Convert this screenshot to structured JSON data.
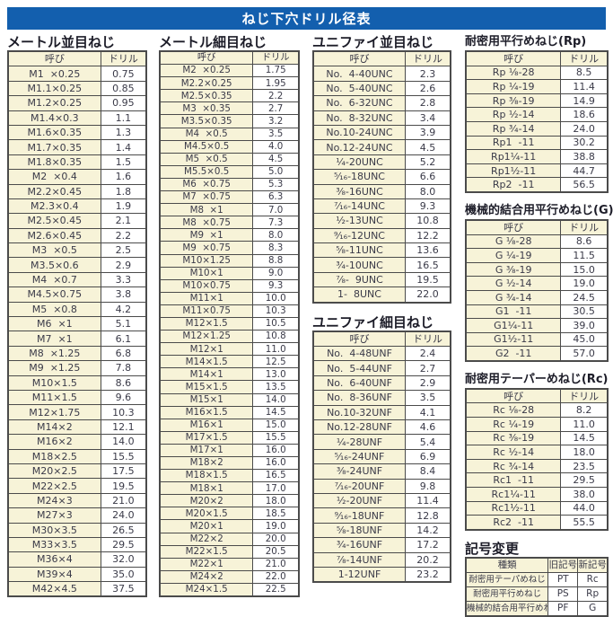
{
  "page_title": "ねじ下穴ドリル径表",
  "colors": {
    "header_blue": "#135fae",
    "cell_cream": "#f7f3d8",
    "border": "#4b4b4b",
    "text": "#3a3a48"
  },
  "col_headers": {
    "name": "呼び",
    "drill": "ドリル"
  },
  "tables": {
    "metric_coarse": {
      "title": "メートル並目ねじ",
      "rows": [
        [
          "M1  ×0.25",
          "0.75"
        ],
        [
          "M1.1×0.25",
          "0.85"
        ],
        [
          "M1.2×0.25",
          "0.95"
        ],
        [
          "M1.4×0.3",
          "1.1"
        ],
        [
          "M1.6×0.35",
          "1.3"
        ],
        [
          "M1.7×0.35",
          "1.4"
        ],
        [
          "M1.8×0.35",
          "1.5"
        ],
        [
          "M2  ×0.4",
          "1.6"
        ],
        [
          "M2.2×0.45",
          "1.8"
        ],
        [
          "M2.3×0.4",
          "1.9"
        ],
        [
          "M2.5×0.45",
          "2.1"
        ],
        [
          "M2.6×0.45",
          "2.2"
        ],
        [
          "M3  ×0.5",
          "2.5"
        ],
        [
          "M3.5×0.6",
          "2.9"
        ],
        [
          "M4  ×0.7",
          "3.3"
        ],
        [
          "M4.5×0.75",
          "3.8"
        ],
        [
          "M5  ×0.8",
          "4.2"
        ],
        [
          "M6  ×1",
          "5.1"
        ],
        [
          "M7  ×1",
          "6.1"
        ],
        [
          "M8  ×1.25",
          "6.8"
        ],
        [
          "M9  ×1.25",
          "7.8"
        ],
        [
          "M10×1.5",
          "8.6"
        ],
        [
          "M11×1.5",
          "9.6"
        ],
        [
          "M12×1.75",
          "10.3"
        ],
        [
          "M14×2",
          "12.1"
        ],
        [
          "M16×2",
          "14.0"
        ],
        [
          "M18×2.5",
          "15.5"
        ],
        [
          "M20×2.5",
          "17.5"
        ],
        [
          "M22×2.5",
          "19.5"
        ],
        [
          "M24×3",
          "21.0"
        ],
        [
          "M27×3",
          "24.0"
        ],
        [
          "M30×3.5",
          "26.5"
        ],
        [
          "M33×3.5",
          "29.5"
        ],
        [
          "M36×4",
          "32.0"
        ],
        [
          "M39×4",
          "35.0"
        ],
        [
          "M42×4.5",
          "37.5"
        ]
      ]
    },
    "metric_fine": {
      "title": "メートル細目ねじ",
      "rows": [
        [
          "M2  ×0.25",
          "1.75"
        ],
        [
          "M2.2×0.25",
          "1.95"
        ],
        [
          "M2.5×0.35",
          "2.2"
        ],
        [
          "M3  ×0.35",
          "2.7"
        ],
        [
          "M3.5×0.35",
          "3.2"
        ],
        [
          "M4  ×0.5",
          "3.5"
        ],
        [
          "M4.5×0.5",
          "4.0"
        ],
        [
          "M5  ×0.5",
          "4.5"
        ],
        [
          "M5.5×0.5",
          "5.0"
        ],
        [
          "M6  ×0.75",
          "5.3"
        ],
        [
          "M7  ×0.75",
          "6.3"
        ],
        [
          "M8  ×1",
          "7.0"
        ],
        [
          "M8  ×0.75",
          "7.3"
        ],
        [
          "M9  ×1",
          "8.0"
        ],
        [
          "M9  ×0.75",
          "8.3"
        ],
        [
          "M10×1.25",
          "8.8"
        ],
        [
          "M10×1",
          "9.0"
        ],
        [
          "M10×0.75",
          "9.3"
        ],
        [
          "M11×1",
          "10.0"
        ],
        [
          "M11×0.75",
          "10.3"
        ],
        [
          "M12×1.5",
          "10.5"
        ],
        [
          "M12×1.25",
          "10.8"
        ],
        [
          "M12×1",
          "11.0"
        ],
        [
          "M14×1.5",
          "12.5"
        ],
        [
          "M14×1",
          "13.0"
        ],
        [
          "M15×1.5",
          "13.5"
        ],
        [
          "M15×1",
          "14.0"
        ],
        [
          "M16×1.5",
          "14.5"
        ],
        [
          "M16×1",
          "15.0"
        ],
        [
          "M17×1.5",
          "15.5"
        ],
        [
          "M17×1",
          "16.0"
        ],
        [
          "M18×2",
          "16.0"
        ],
        [
          "M18×1.5",
          "16.5"
        ],
        [
          "M18×1",
          "17.0"
        ],
        [
          "M20×2",
          "18.0"
        ],
        [
          "M20×1.5",
          "18.5"
        ],
        [
          "M20×1",
          "19.0"
        ],
        [
          "M22×2",
          "20.0"
        ],
        [
          "M22×1.5",
          "20.5"
        ],
        [
          "M22×1",
          "21.0"
        ],
        [
          "M24×2",
          "22.0"
        ],
        [
          "M24×1.5",
          "22.5"
        ]
      ]
    },
    "unified_coarse": {
      "title": "ユニファイ並目ねじ",
      "rows": [
        [
          "No.  4-40UNC",
          "2.3"
        ],
        [
          "No.  5-40UNC",
          "2.6"
        ],
        [
          "No.  6-32UNC",
          "2.8"
        ],
        [
          "No.  8-32UNC",
          "3.4"
        ],
        [
          "No.10-24UNC",
          "3.9"
        ],
        [
          "No.12-24UNC",
          "4.5"
        ],
        [
          "¹⁄₄-20UNC",
          "5.2"
        ],
        [
          "⁵⁄₁₆-18UNC",
          "6.6"
        ],
        [
          "³⁄₈-16UNC",
          "8.0"
        ],
        [
          "⁷⁄₁₆-14UNC",
          "9.3"
        ],
        [
          "¹⁄₂-13UNC",
          "10.8"
        ],
        [
          "⁹⁄₁₆-12UNC",
          "12.2"
        ],
        [
          "⁵⁄₈-11UNC",
          "13.6"
        ],
        [
          "³⁄₄-10UNC",
          "16.5"
        ],
        [
          "⁷⁄₈-  9UNC",
          "19.5"
        ],
        [
          "1-  8UNC",
          "22.0"
        ]
      ]
    },
    "unified_fine": {
      "title": "ユニファイ細目ねじ",
      "rows": [
        [
          "No.  4-48UNF",
          "2.4"
        ],
        [
          "No.  5-44UNF",
          "2.7"
        ],
        [
          "No.  6-40UNF",
          "2.9"
        ],
        [
          "No.  8-36UNF",
          "3.5"
        ],
        [
          "No.10-32UNF",
          "4.1"
        ],
        [
          "No.12-28UNF",
          "4.6"
        ],
        [
          "¹⁄₄-28UNF",
          "5.4"
        ],
        [
          "⁵⁄₁₆-24UNF",
          "6.9"
        ],
        [
          "³⁄₈-24UNF",
          "8.4"
        ],
        [
          "⁷⁄₁₆-20UNF",
          "9.8"
        ],
        [
          "¹⁄₂-20UNF",
          "11.4"
        ],
        [
          "⁹⁄₁₆-18UNF",
          "12.8"
        ],
        [
          "⁵⁄₈-18UNF",
          "14.2"
        ],
        [
          "³⁄₄-16UNF",
          "17.2"
        ],
        [
          "⁷⁄₈-14UNF",
          "20.2"
        ],
        [
          "1-12UNF",
          "23.2"
        ]
      ]
    },
    "rp": {
      "title": "耐密用平行めねじ(Rp)",
      "rows": [
        [
          "Rp ¹⁄₈-28",
          "8.5"
        ],
        [
          "Rp ¹⁄₄-19",
          "11.4"
        ],
        [
          "Rp ³⁄₈-19",
          "14.9"
        ],
        [
          "Rp ¹⁄₂-14",
          "18.6"
        ],
        [
          "Rp ³⁄₄-14",
          "24.0"
        ],
        [
          "Rp1  -11",
          "30.2"
        ],
        [
          "Rp1¹⁄₄-11",
          "38.8"
        ],
        [
          "Rp1¹⁄₂-11",
          "44.7"
        ],
        [
          "Rp2  -11",
          "56.5"
        ]
      ]
    },
    "g": {
      "title": "機械的結合用平行めねじ(G)",
      "rows": [
        [
          "G ¹⁄₈-28",
          "8.6"
        ],
        [
          "G ¹⁄₄-19",
          "11.5"
        ],
        [
          "G ³⁄₈-19",
          "15.0"
        ],
        [
          "G ¹⁄₂-14",
          "19.0"
        ],
        [
          "G ³⁄₄-14",
          "24.5"
        ],
        [
          "G1  -11",
          "30.5"
        ],
        [
          "G1¹⁄₄-11",
          "39.0"
        ],
        [
          "G1¹⁄₂-11",
          "45.0"
        ],
        [
          "G2  -11",
          "57.0"
        ]
      ]
    },
    "rc": {
      "title": "耐密用テーパーめねじ(Rc)",
      "rows": [
        [
          "Rc ¹⁄₈-28",
          "8.2"
        ],
        [
          "Rc ¹⁄₄-19",
          "11.0"
        ],
        [
          "Rc ³⁄₈-19",
          "14.5"
        ],
        [
          "Rc ¹⁄₂-14",
          "18.0"
        ],
        [
          "Rc ³⁄₄-14",
          "23.5"
        ],
        [
          "Rc1  -11",
          "29.5"
        ],
        [
          "Rc1¹⁄₄-11",
          "38.0"
        ],
        [
          "Rc1¹⁄₂-11",
          "44.0"
        ],
        [
          "Rc2  -11",
          "55.5"
        ]
      ]
    },
    "symbol_change": {
      "title": "記号変更",
      "headers": [
        "種類",
        "旧記号",
        "新記号"
      ],
      "rows": [
        [
          "耐密用テーパめねじ",
          "PT",
          "Rc"
        ],
        [
          "耐密用平行めねじ",
          "PS",
          "Rp"
        ],
        [
          "機械的結合用平行めねじ",
          "PF",
          "G"
        ]
      ]
    }
  }
}
